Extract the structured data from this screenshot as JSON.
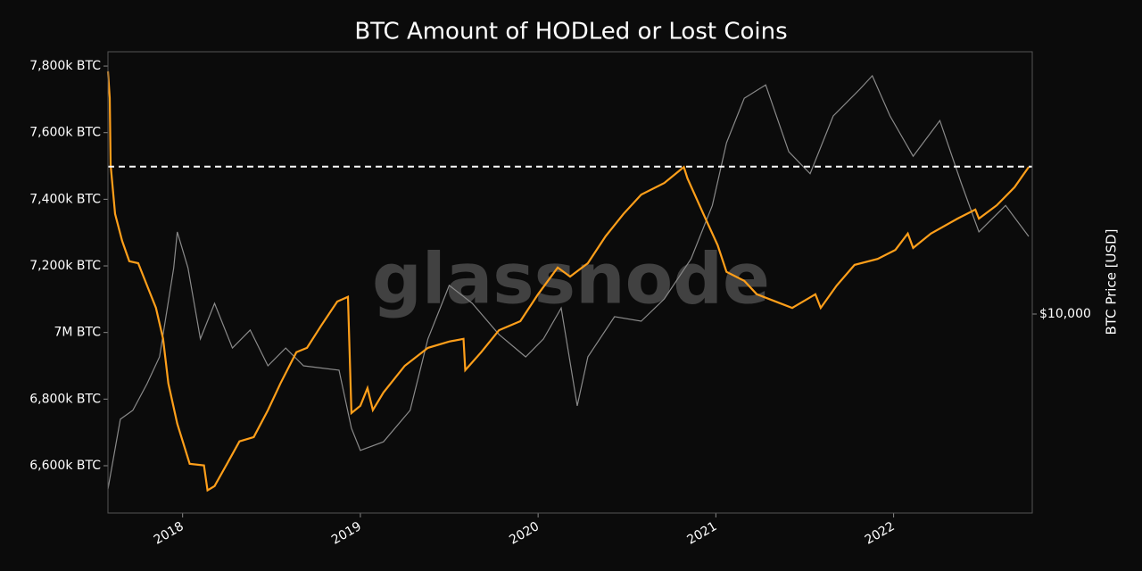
{
  "chart_data": {
    "type": "line",
    "title": "BTC Amount of HODLed or Lost Coins",
    "watermark": "glassnode",
    "y2label": "BTC Price [USD]",
    "xlim": [
      2017.58,
      2022.78
    ],
    "xticks": [
      2018,
      2019,
      2020,
      2021,
      2022
    ],
    "ylim": [
      6458000,
      7843000
    ],
    "yticks": [
      {
        "value": 6600000,
        "label": "6,600k BTC"
      },
      {
        "value": 6800000,
        "label": "6,800k BTC"
      },
      {
        "value": 7000000,
        "label": "7M BTC"
      },
      {
        "value": 7200000,
        "label": "7,200k BTC"
      },
      {
        "value": 7400000,
        "label": "7,400k BTC"
      },
      {
        "value": 7600000,
        "label": "7,600k BTC"
      },
      {
        "value": 7800000,
        "label": "7,800k BTC"
      }
    ],
    "y2lim": [
      2010,
      82900
    ],
    "y2scale": "log",
    "y2ticks": [
      {
        "value": 10000,
        "label": "$10,000"
      }
    ],
    "reference_line": {
      "value": 7498000,
      "color": "#ffffff"
    },
    "series": [
      {
        "color": "#8a8a8a",
        "axis": "y2",
        "x": [
          2017.58,
          2017.65,
          2017.72,
          2017.8,
          2017.87,
          2017.95,
          2017.97,
          2018.03,
          2018.1,
          2018.18,
          2018.28,
          2018.38,
          2018.48,
          2018.58,
          2018.68,
          2018.88,
          2018.95,
          2019.0,
          2019.13,
          2019.28,
          2019.38,
          2019.5,
          2019.63,
          2019.78,
          2019.93,
          2020.03,
          2020.13,
          2020.22,
          2020.28,
          2020.43,
          2020.58,
          2020.71,
          2020.86,
          2020.98,
          2021.06,
          2021.16,
          2021.28,
          2021.41,
          2021.53,
          2021.66,
          2021.81,
          2021.88,
          2021.98,
          2022.11,
          2022.26,
          2022.38,
          2022.48,
          2022.63,
          2022.76
        ],
        "values": [
          2440,
          4280,
          4600,
          5700,
          7080,
          14500,
          19400,
          14500,
          8180,
          10900,
          7600,
          8790,
          6590,
          7600,
          6590,
          6360,
          3980,
          3330,
          3570,
          4600,
          8180,
          12600,
          10900,
          8480,
          7080,
          8180,
          10500,
          4770,
          7080,
          9790,
          9440,
          11300,
          15600,
          24000,
          39800,
          57000,
          63500,
          37000,
          31000,
          49400,
          61300,
          68300,
          49400,
          35700,
          47600,
          28800,
          19400,
          24000,
          18700
        ]
      },
      {
        "color": "#ff9f1a",
        "x": [
          2017.58,
          2017.59,
          2017.595,
          2017.62,
          2017.66,
          2017.7,
          2017.75,
          2017.8,
          2017.85,
          2017.89,
          2017.92,
          2017.97,
          2018.04,
          2018.12,
          2018.14,
          2018.18,
          2018.25,
          2018.32,
          2018.4,
          2018.48,
          2018.55,
          2018.64,
          2018.7,
          2018.78,
          2018.87,
          2018.93,
          2018.95,
          2019.0,
          2019.04,
          2019.07,
          2019.13,
          2019.25,
          2019.38,
          2019.5,
          2019.58,
          2019.59,
          2019.68,
          2019.78,
          2019.9,
          2020.0,
          2020.11,
          2020.18,
          2020.28,
          2020.38,
          2020.48,
          2020.58,
          2020.71,
          2020.82,
          2020.84,
          2020.93,
          2021.01,
          2021.06,
          2021.16,
          2021.23,
          2021.36,
          2021.43,
          2021.56,
          2021.59,
          2021.68,
          2021.78,
          2021.91,
          2022.01,
          2022.08,
          2022.11,
          2022.21,
          2022.36,
          2022.46,
          2022.48,
          2022.58,
          2022.68,
          2022.76
        ],
        "values": [
          7784000,
          7704000,
          7503000,
          7356000,
          7275000,
          7214000,
          7208000,
          7141000,
          7074000,
          6981000,
          6847000,
          6726000,
          6606000,
          6601000,
          6526000,
          6539000,
          6606000,
          6673000,
          6686000,
          6767000,
          6847000,
          6941000,
          6954000,
          7021000,
          7093000,
          7107000,
          6758000,
          6780000,
          6833000,
          6767000,
          6820000,
          6900000,
          6954000,
          6973000,
          6981000,
          6887000,
          6941000,
          7007000,
          7034000,
          7115000,
          7195000,
          7168000,
          7208000,
          7289000,
          7356000,
          7414000,
          7449000,
          7497000,
          7463000,
          7356000,
          7262000,
          7182000,
          7155000,
          7115000,
          7088000,
          7074000,
          7115000,
          7074000,
          7141000,
          7203000,
          7221000,
          7248000,
          7297000,
          7254000,
          7297000,
          7342000,
          7369000,
          7342000,
          7382000,
          7436000,
          7497000
        ]
      }
    ]
  }
}
